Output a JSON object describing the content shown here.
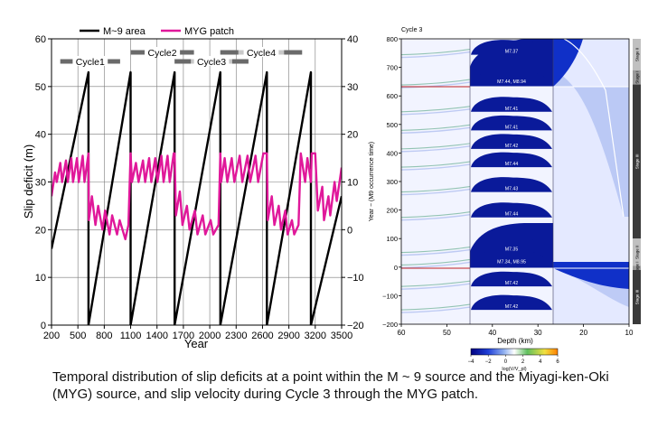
{
  "caption": "Temporal distribution of slip deficits at a point within the M ~ 9 source and the Miyagi-ken-Oki (MYG) source, and slip velocity during Cycle 3 through the MYG patch.",
  "chart_data": [
    {
      "type": "line",
      "xlabel": "Year",
      "ylabel": "Slip deficit (m)",
      "xlim": [
        200,
        3500
      ],
      "ylim_left": [
        0,
        60
      ],
      "ylim_right": [
        -20,
        40
      ],
      "x_ticks": [
        "200",
        "500",
        "800",
        "1100",
        "1400",
        "1700",
        "2000",
        "2300",
        "2600",
        "2900",
        "3200",
        "3500"
      ],
      "y_ticks_left": [
        "0",
        "10",
        "20",
        "30",
        "40",
        "50",
        "60"
      ],
      "y_ticks_right": [
        "−20",
        "−10",
        "0",
        "10",
        "20",
        "30",
        "40"
      ],
      "grid": true,
      "legend_position": "top",
      "colors": {
        "m9": "#000000",
        "myg": "#e0189a"
      },
      "series": [
        {
          "name": "M~9 area",
          "axis": "left",
          "x": [
            200,
            620,
            620,
            1100,
            1100,
            1600,
            1600,
            2120,
            2120,
            2650,
            2650,
            3150,
            3150,
            3500
          ],
          "y": [
            16,
            53,
            0,
            53,
            0,
            53,
            0,
            53,
            0,
            53,
            0,
            53,
            0,
            27
          ]
        },
        {
          "name": "MYG patch",
          "axis": "right",
          "x": [
            200,
            240,
            260,
            300,
            320,
            365,
            385,
            425,
            445,
            490,
            510,
            555,
            575,
            620,
            625,
            660,
            700,
            730,
            780,
            810,
            860,
            890,
            945,
            975,
            1040,
            1075,
            1100,
            1115,
            1160,
            1190,
            1240,
            1265,
            1310,
            1335,
            1380,
            1405,
            1450,
            1475,
            1520,
            1545,
            1590,
            1600,
            1615,
            1660,
            1690,
            1740,
            1770,
            1830,
            1860,
            1920,
            1950,
            2010,
            2040,
            2100,
            2120,
            2130,
            2170,
            2200,
            2250,
            2280,
            2340,
            2370,
            2430,
            2460,
            2520,
            2550,
            2610,
            2650,
            2660,
            2705,
            2735,
            2785,
            2810,
            2860,
            2885,
            2935,
            2960,
            3010,
            3035,
            3085,
            3110,
            3150,
            3160,
            3200,
            3230,
            3280,
            3300,
            3350,
            3370,
            3420,
            3445,
            3500
          ],
          "y": [
            7,
            12,
            10,
            14,
            10,
            14.5,
            10,
            15,
            10,
            15,
            10,
            15.5,
            10,
            16,
            2,
            7,
            1,
            5,
            0,
            4,
            -1,
            3,
            -1,
            2,
            -2,
            1,
            16,
            10,
            14,
            10,
            14.5,
            10,
            15,
            10,
            15,
            10,
            15.5,
            10,
            15.5,
            10,
            16,
            16,
            3,
            8,
            1,
            5,
            0,
            4,
            -1,
            3,
            -1,
            2,
            -1,
            1,
            16,
            10,
            15,
            10,
            15,
            10,
            15.5,
            10,
            15.5,
            10,
            15.5,
            10,
            16,
            16,
            2,
            7,
            1,
            5,
            0,
            4,
            -1,
            2,
            -1,
            1,
            16,
            10,
            15,
            10,
            16,
            16,
            4,
            9,
            2,
            7,
            3,
            10,
            6,
            13
          ]
        }
      ],
      "annotations": [
        {
          "label": "Cycle1",
          "x_range": [
            300,
            980
          ],
          "row": 2
        },
        {
          "label": "Cycle2",
          "x_range": [
            1100,
            1820
          ],
          "row": 1
        },
        {
          "label": "Cycle3",
          "x_range": [
            1600,
            2440
          ],
          "row": 2
        },
        {
          "label": "Cycle4",
          "x_range": [
            2120,
            3050
          ],
          "row": 1
        }
      ]
    },
    {
      "type": "heatmap",
      "title": "Cycle 3",
      "xlabel": "Depth (km)",
      "ylabel": "Year − (M9 occurrence time)",
      "xlim": [
        60,
        10
      ],
      "ylim": [
        -200,
        800
      ],
      "x_ticks": [
        "60",
        "50",
        "40",
        "30",
        "20",
        "10"
      ],
      "y_ticks": [
        "−200",
        "−100",
        "0",
        "100",
        "200",
        "300",
        "400",
        "500",
        "600",
        "700",
        "800"
      ],
      "colorbar": {
        "label": "log(V/V_pl)",
        "ticks": [
          "−4",
          "−2",
          "0",
          "2",
          "4",
          "6"
        ],
        "range": [
          -4,
          6
        ],
        "colors": [
          "#000080",
          "#2040d8",
          "#90b0f0",
          "#ffffff",
          "#60c060",
          "#f0e040",
          "#ff8000"
        ]
      },
      "event_labels": [
        {
          "text": "M7.37",
          "year": 757
        },
        {
          "text": "M7.44, M8.94",
          "year": 651
        },
        {
          "text": "M7.41",
          "year": 557
        },
        {
          "text": "M7.41",
          "year": 492
        },
        {
          "text": "M7.42",
          "year": 427
        },
        {
          "text": "M7.44",
          "year": 363
        },
        {
          "text": "M7.43",
          "year": 276
        },
        {
          "text": "M7.44",
          "year": 187
        },
        {
          "text": "M7.35",
          "year": 64
        },
        {
          "text": "M7.34, M8.95",
          "year": 20
        },
        {
          "text": "M7.42",
          "year": -55
        },
        {
          "text": "M7.42",
          "year": -137
        }
      ],
      "stage_labels": [
        {
          "text": "Stage II",
          "from": 690,
          "to": 800
        },
        {
          "text": "Stage I",
          "from": 640,
          "to": 690
        },
        {
          "text": "Stage III",
          "from": 100,
          "to": 640
        },
        {
          "text": "Stage II",
          "from": 5,
          "to": 100
        },
        {
          "text": "Stage I",
          "from": -10,
          "to": 5
        },
        {
          "text": "Stage III",
          "from": -200,
          "to": -10
        }
      ]
    }
  ]
}
